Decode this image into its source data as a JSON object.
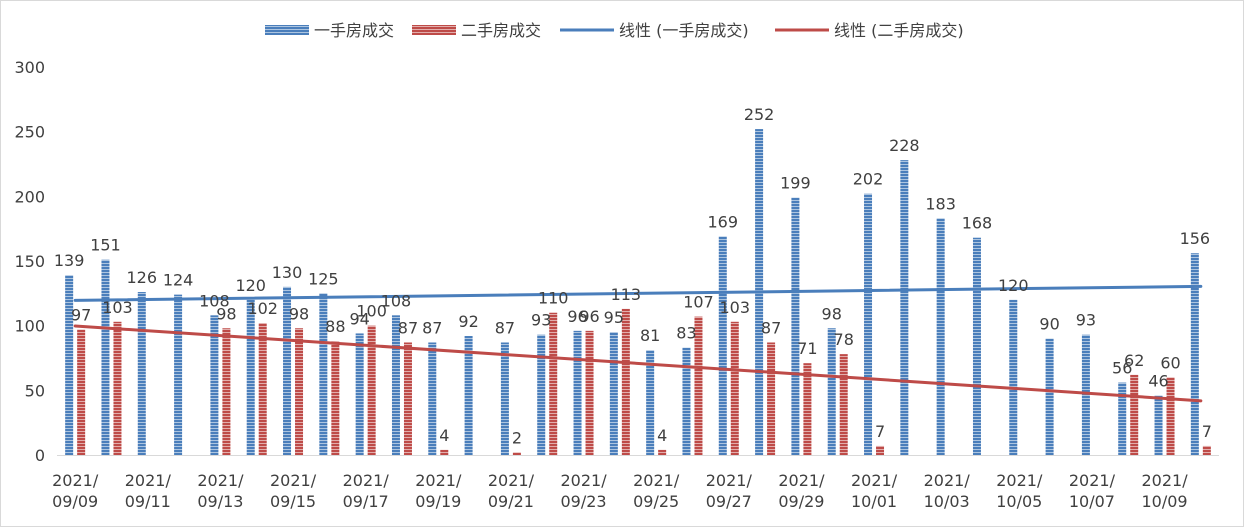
{
  "chart_data": {
    "type": "bar",
    "categories": [
      "2021/09/09",
      "2021/09/10",
      "2021/09/11",
      "2021/09/12",
      "2021/09/13",
      "2021/09/14",
      "2021/09/15",
      "2021/09/16",
      "2021/09/17",
      "2021/09/18",
      "2021/09/19",
      "2021/09/20",
      "2021/09/21",
      "2021/09/22",
      "2021/09/23",
      "2021/09/24",
      "2021/09/25",
      "2021/09/26",
      "2021/09/27",
      "2021/09/28",
      "2021/09/29",
      "2021/09/30",
      "2021/10/01",
      "2021/10/02",
      "2021/10/03",
      "2021/10/04",
      "2021/10/05",
      "2021/10/06",
      "2021/10/07",
      "2021/10/08",
      "2021/10/09",
      "2021/10/10"
    ],
    "xtick_labels": [
      {
        "index": 0,
        "line1": "2021/",
        "line2": "09/09"
      },
      {
        "index": 2,
        "line1": "2021/",
        "line2": "09/11"
      },
      {
        "index": 4,
        "line1": "2021/",
        "line2": "09/13"
      },
      {
        "index": 6,
        "line1": "2021/",
        "line2": "09/15"
      },
      {
        "index": 8,
        "line1": "2021/",
        "line2": "09/17"
      },
      {
        "index": 10,
        "line1": "2021/",
        "line2": "09/19"
      },
      {
        "index": 12,
        "line1": "2021/",
        "line2": "09/21"
      },
      {
        "index": 14,
        "line1": "2021/",
        "line2": "09/23"
      },
      {
        "index": 16,
        "line1": "2021/",
        "line2": "09/25"
      },
      {
        "index": 18,
        "line1": "2021/",
        "line2": "09/27"
      },
      {
        "index": 20,
        "line1": "2021/",
        "line2": "09/29"
      },
      {
        "index": 22,
        "line1": "2021/",
        "line2": "10/01"
      },
      {
        "index": 24,
        "line1": "2021/",
        "line2": "10/03"
      },
      {
        "index": 26,
        "line1": "2021/",
        "line2": "10/05"
      },
      {
        "index": 28,
        "line1": "2021/",
        "line2": "10/07"
      },
      {
        "index": 30,
        "line1": "2021/",
        "line2": "10/09"
      }
    ],
    "series": [
      {
        "name": "一手房成交",
        "kind": "bar",
        "color": "#4a7ebb",
        "values": [
          139,
          151,
          126,
          124,
          108,
          120,
          130,
          125,
          94,
          108,
          87,
          92,
          87,
          93,
          96,
          95,
          81,
          83,
          169,
          252,
          199,
          98,
          202,
          228,
          183,
          168,
          120,
          90,
          93,
          56,
          46,
          156
        ]
      },
      {
        "name": "二手房成交",
        "kind": "bar",
        "color": "#be4b48",
        "values": [
          97,
          103,
          null,
          null,
          98,
          102,
          98,
          88,
          100,
          87,
          4,
          null,
          2,
          110,
          96,
          113,
          4,
          107,
          103,
          87,
          71,
          78,
          7,
          null,
          null,
          null,
          null,
          null,
          null,
          62,
          60,
          7
        ]
      },
      {
        "name": "线性 (一手房成交)",
        "kind": "trendline",
        "of": 0,
        "color": "#4a7ebb"
      },
      {
        "name": "线性 (二手房成交)",
        "kind": "trendline",
        "of": 1,
        "color": "#be4b48"
      }
    ],
    "ylim": [
      0,
      300
    ],
    "yticks": [
      0,
      50,
      100,
      150,
      200,
      250,
      300
    ],
    "grid": false,
    "legend_position": "top",
    "title": "",
    "xlabel": "",
    "ylabel": ""
  }
}
